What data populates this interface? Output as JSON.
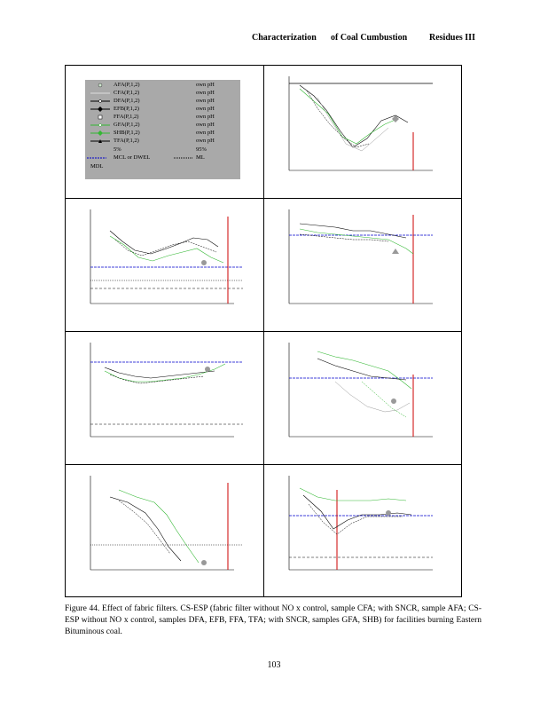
{
  "header": {
    "part1": "Characterization",
    "part2": "of Coal Cumbustion",
    "part3": "Residues III"
  },
  "legend": {
    "rows": [
      {
        "label": "AFA(P,1,2)",
        "ph": "own pH"
      },
      {
        "label": "CFA(P,1,2)",
        "ph": "own pH"
      },
      {
        "label": "DFA(P,1,2)",
        "ph": "own pH"
      },
      {
        "label": "EFB(P,1,2)",
        "ph": "own pH"
      },
      {
        "label": "FFA(P,1,2)",
        "ph": "own pH"
      },
      {
        "label": "GFA(P,1,2)",
        "ph": "own pH"
      },
      {
        "label": "SHB(P,1,2)",
        "ph": "own pH"
      },
      {
        "label": "TFA(P,1,2)",
        "ph": "own pH"
      }
    ],
    "pct5": "5%",
    "pct95": "95%",
    "mcl": "MCL or DWEL",
    "ml": "ML",
    "mdl": "MDL"
  },
  "caption": "Figure 44. Effect of fabric filters. CS-ESP (fabric filter without NO x control, sample CFA; with SNCR, sample AFA; CS-ESP without NO x control, samples DFA, EFB, FFA, TFA; with SNCR, samples GFA, SHB) for facilities burning Eastern Bituminous coal.",
  "page_number": "103",
  "colors": {
    "green": "#33b833",
    "black": "#000000",
    "gray": "#999999",
    "red": "#cc0000",
    "blue": "#0000cc",
    "legend_bg": "#a9a9a9"
  }
}
